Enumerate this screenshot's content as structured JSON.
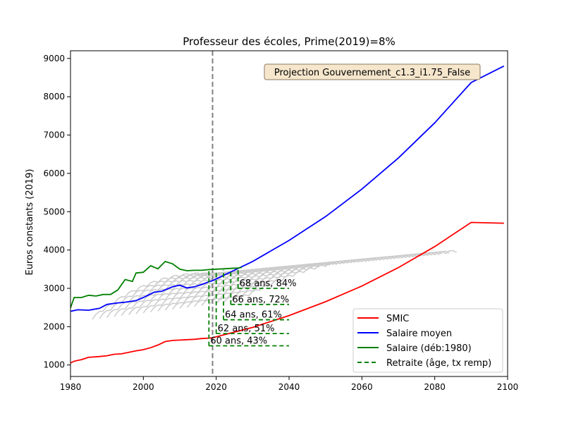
{
  "chart_data": {
    "type": "line",
    "title": "Professeur des écoles, Prime(2019)=8%",
    "xlabel": "",
    "ylabel": "Euros constants (2019)",
    "xlim": [
      1980,
      2100
    ],
    "ylim": [
      700,
      9200
    ],
    "xticks": [
      1980,
      2000,
      2020,
      2040,
      2060,
      2080,
      2100
    ],
    "yticks": [
      1000,
      2000,
      3000,
      4000,
      5000,
      6000,
      7000,
      8000,
      9000
    ],
    "vline_x": 2019,
    "annotation_box": "Projection Gouvernement_c1.3_i1.75_False",
    "grid": false,
    "legend_position": "lower-right",
    "series": [
      {
        "name": "SMIC",
        "color": "#ff0000",
        "points": [
          [
            1980,
            1050
          ],
          [
            1981,
            1100
          ],
          [
            1983,
            1140
          ],
          [
            1985,
            1200
          ],
          [
            1988,
            1220
          ],
          [
            1990,
            1240
          ],
          [
            1992,
            1280
          ],
          [
            1994,
            1290
          ],
          [
            1996,
            1330
          ],
          [
            1998,
            1370
          ],
          [
            2000,
            1400
          ],
          [
            2002,
            1450
          ],
          [
            2004,
            1520
          ],
          [
            2006,
            1610
          ],
          [
            2008,
            1640
          ],
          [
            2010,
            1650
          ],
          [
            2012,
            1660
          ],
          [
            2014,
            1670
          ],
          [
            2016,
            1690
          ],
          [
            2018,
            1700
          ],
          [
            2019,
            1710
          ],
          [
            2030,
            1980
          ],
          [
            2040,
            2290
          ],
          [
            2050,
            2650
          ],
          [
            2060,
            3060
          ],
          [
            2070,
            3540
          ],
          [
            2080,
            4090
          ],
          [
            2090,
            4720
          ],
          [
            2099,
            4700
          ]
        ]
      },
      {
        "name": "Salaire moyen",
        "color": "#0000ff",
        "points": [
          [
            1980,
            2400
          ],
          [
            1982,
            2440
          ],
          [
            1985,
            2430
          ],
          [
            1988,
            2480
          ],
          [
            1990,
            2580
          ],
          [
            1993,
            2620
          ],
          [
            1995,
            2640
          ],
          [
            1998,
            2680
          ],
          [
            2000,
            2760
          ],
          [
            2003,
            2900
          ],
          [
            2005,
            2920
          ],
          [
            2008,
            3040
          ],
          [
            2010,
            3080
          ],
          [
            2012,
            3010
          ],
          [
            2014,
            3040
          ],
          [
            2016,
            3100
          ],
          [
            2018,
            3170
          ],
          [
            2019,
            3200
          ],
          [
            2030,
            3700
          ],
          [
            2040,
            4250
          ],
          [
            2050,
            4870
          ],
          [
            2060,
            5590
          ],
          [
            2070,
            6400
          ],
          [
            2080,
            7320
          ],
          [
            2090,
            8370
          ],
          [
            2099,
            8800
          ]
        ]
      },
      {
        "name": "Salaire (déb:1980)",
        "color": "#008000",
        "points": [
          [
            1980,
            2490
          ],
          [
            1981,
            2760
          ],
          [
            1983,
            2760
          ],
          [
            1985,
            2820
          ],
          [
            1987,
            2800
          ],
          [
            1989,
            2840
          ],
          [
            1991,
            2840
          ],
          [
            1993,
            2960
          ],
          [
            1995,
            3230
          ],
          [
            1997,
            3180
          ],
          [
            1998,
            3400
          ],
          [
            2000,
            3420
          ],
          [
            2002,
            3590
          ],
          [
            2004,
            3510
          ],
          [
            2006,
            3700
          ],
          [
            2008,
            3640
          ],
          [
            2010,
            3500
          ],
          [
            2012,
            3460
          ],
          [
            2014,
            3470
          ],
          [
            2016,
            3470
          ],
          [
            2018,
            3490
          ],
          [
            2020,
            3500
          ],
          [
            2022,
            3510
          ],
          [
            2024,
            3520
          ],
          [
            2026,
            3530
          ],
          [
            2027,
            3545
          ]
        ]
      }
    ],
    "background_series_color": "#cccccc",
    "retirement_legend": "Retraite (âge, tx remp)",
    "retirement_color": "#008000",
    "retirements": [
      {
        "label": "60 ans, 43%",
        "x": 2018,
        "y": 1500,
        "x_end": 2040
      },
      {
        "label": "62 ans, 51%",
        "x": 2020,
        "y": 1820,
        "x_end": 2040
      },
      {
        "label": "64 ans, 61%",
        "x": 2022,
        "y": 2180,
        "x_end": 2040
      },
      {
        "label": "66 ans, 72%",
        "x": 2024,
        "y": 2580,
        "x_end": 2040
      },
      {
        "label": "68 ans, 84%",
        "x": 2026,
        "y": 3000,
        "x_end": 2040
      }
    ]
  }
}
